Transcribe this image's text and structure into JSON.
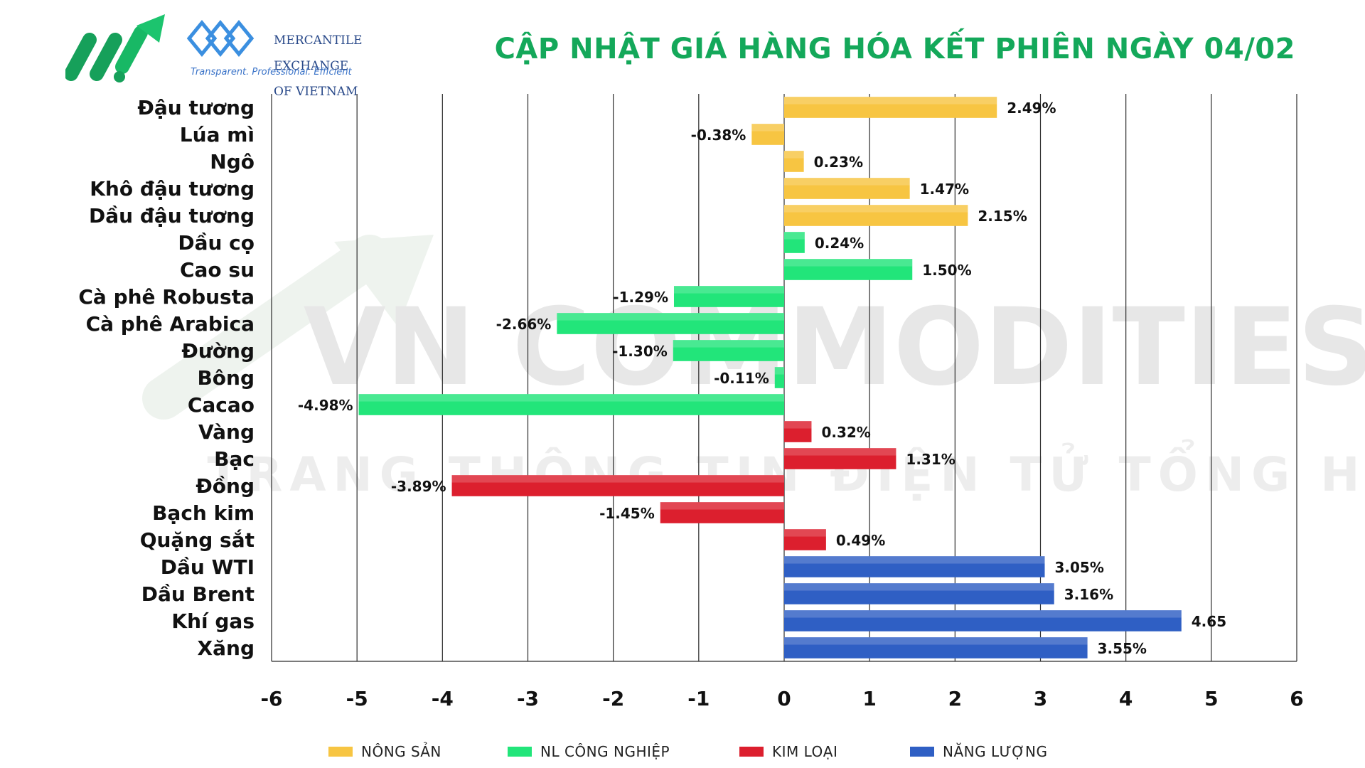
{
  "header": {
    "org_name_lines": [
      "MERCANTILE",
      "EXCHANGE",
      "OF VIETNAM"
    ],
    "tagline": "Transparent. Professional. Efficient",
    "title": "CẬP NHẬT GIÁ HÀNG HÓA KẾT PHIÊN NGÀY 04/02"
  },
  "watermark": {
    "line1": "VN COMMODITIES",
    "line2": "TRANG THÔNG TIN ĐIỆN TỬ TỔNG HỢP"
  },
  "colors": {
    "nong_san": "#f7c542",
    "nl_cong_nghiep": "#22e57a",
    "kim_loai": "#dc1f2e",
    "nang_luong": "#2f5fc4",
    "title": "#14a85a",
    "grid": "#2b2b2b"
  },
  "legend": [
    {
      "key": "nong_san",
      "label": "NÔNG SẢN"
    },
    {
      "key": "nl_cong_nghiep",
      "label": "NL CÔNG NGHIỆP"
    },
    {
      "key": "kim_loai",
      "label": "KIM LOẠI"
    },
    {
      "key": "nang_luong",
      "label": "NĂNG LƯỢNG"
    }
  ],
  "chart_data": {
    "type": "bar",
    "orientation": "horizontal",
    "xlim": [
      -6,
      6
    ],
    "xticks": [
      "-6",
      "-5",
      "-4",
      "-3",
      "-2",
      "-1",
      "0",
      "1",
      "2",
      "3",
      "4",
      "5",
      "6"
    ],
    "grid": true,
    "legend_position": "bottom",
    "categories": [
      "Đậu tương",
      "Lúa mì",
      "Ngô",
      "Khô đậu tương",
      "Dầu đậu tương",
      "Dầu cọ",
      "Cao su",
      "Cà phê Robusta",
      "Cà phê Arabica",
      "Đường",
      "Bông",
      "Cacao",
      "Vàng",
      "Bạc",
      "Đồng",
      "Bạch kim",
      "Quặng sắt",
      "Dầu WTI",
      "Dầu Brent",
      "Khí gas",
      "Xăng"
    ],
    "values": [
      2.49,
      -0.38,
      0.23,
      1.47,
      2.15,
      0.24,
      1.5,
      -1.29,
      -2.66,
      -1.3,
      -0.11,
      -4.98,
      0.32,
      1.31,
      -3.89,
      -1.45,
      0.49,
      3.05,
      3.16,
      4.65,
      3.55
    ],
    "labels": [
      "2.49%",
      "-0.38%",
      "0.23%",
      "1.47%",
      "2.15%",
      "0.24%",
      "1.50%",
      "-1.29%",
      "-2.66%",
      "-1.30%",
      "-0.11%",
      "-4.98%",
      "0.32%",
      "1.31%",
      "-3.89%",
      "-1.45%",
      "0.49%",
      "3.05%",
      "3.16%",
      "4.65",
      "3.55%"
    ],
    "groups": [
      "nong_san",
      "nong_san",
      "nong_san",
      "nong_san",
      "nong_san",
      "nl_cong_nghiep",
      "nl_cong_nghiep",
      "nl_cong_nghiep",
      "nl_cong_nghiep",
      "nl_cong_nghiep",
      "nl_cong_nghiep",
      "nl_cong_nghiep",
      "kim_loai",
      "kim_loai",
      "kim_loai",
      "kim_loai",
      "kim_loai",
      "nang_luong",
      "nang_luong",
      "nang_luong",
      "nang_luong"
    ]
  }
}
